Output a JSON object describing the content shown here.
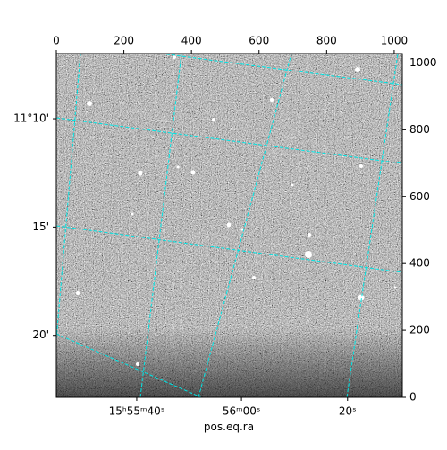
{
  "chart_data": {
    "type": "image",
    "x_label": "pos.eq.ra",
    "xlim": [
      0,
      1024
    ],
    "ylim": [
      0,
      1028
    ],
    "xticks": [
      0,
      200,
      400,
      600,
      800,
      1000
    ],
    "yticks": [
      0,
      200,
      400,
      600,
      800,
      1000
    ],
    "ra_ticks": [
      {
        "value": 238,
        "label": "15ʰ55ᵐ40ˢ"
      },
      {
        "value": 548,
        "label": "56ᵐ00ˢ"
      },
      {
        "value": 862,
        "label": "20ˢ"
      }
    ],
    "dec_ticks": [
      {
        "value": 833,
        "label": "11°10'"
      },
      {
        "value": 509,
        "label": "15'"
      },
      {
        "value": 185,
        "label": "20'"
      }
    ],
    "grid_color": "#00e5e5"
  }
}
